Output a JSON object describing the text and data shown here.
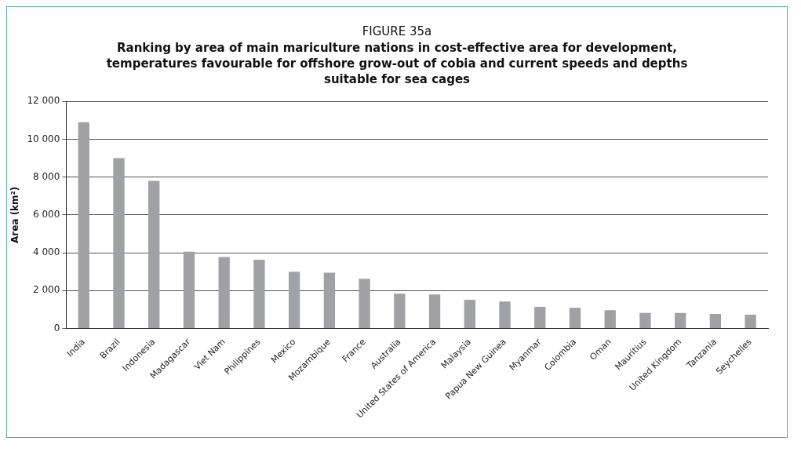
{
  "chart_data": {
    "type": "bar",
    "title": "FIGURE 35a",
    "subtitle": "Ranking by area of main mariculture nations in cost-effective area for development, temperatures favourable for offshore grow-out of cobia and current speeds and depths suitable for sea cages",
    "ylabel": "Area (km²)",
    "categories": [
      "India",
      "Brazil",
      "Indonesia",
      "Madagascar",
      "Viet Nam",
      "Philippines",
      "Mexico",
      "Mozambique",
      "France",
      "Australia",
      "United States of America",
      "Malaysia",
      "Papua New Guinea",
      "Myanmar",
      "Colombia",
      "Oman",
      "Mauritius",
      "United Kingdom",
      "Tanzania",
      "Seychelles"
    ],
    "values": [
      10900,
      9000,
      7800,
      4050,
      3770,
      3630,
      3000,
      2940,
      2620,
      1830,
      1790,
      1510,
      1420,
      1140,
      1090,
      960,
      820,
      820,
      770,
      720
    ],
    "color": "#a0a1a4",
    "ylim": [
      0,
      12000
    ],
    "yticks": [
      {
        "value": 0,
        "label": "0"
      },
      {
        "value": 2000,
        "label": "2 000"
      },
      {
        "value": 4000,
        "label": "4 000"
      },
      {
        "value": 6000,
        "label": "6 000"
      },
      {
        "value": 8000,
        "label": "8 000"
      },
      {
        "value": 10000,
        "label": "10 000"
      },
      {
        "value": 12000,
        "label": "12 000"
      }
    ],
    "grid": "y",
    "legend": false
  }
}
